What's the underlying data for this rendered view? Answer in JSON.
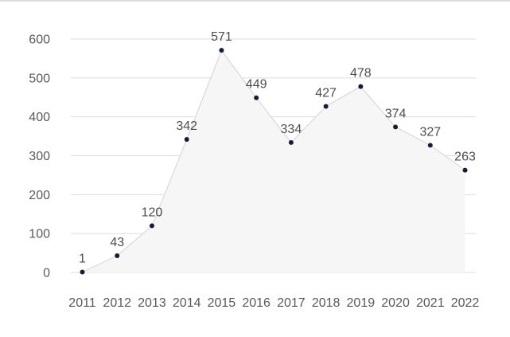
{
  "page": {
    "background_color": "#ffffff",
    "top_border_color": "#dcdcdc"
  },
  "chart_data": {
    "type": "area",
    "title": "",
    "xlabel": "",
    "ylabel": "",
    "categories": [
      "2011",
      "2012",
      "2013",
      "2014",
      "2015",
      "2016",
      "2017",
      "2018",
      "2019",
      "2020",
      "2021",
      "2022"
    ],
    "values": [
      1,
      43,
      120,
      342,
      571,
      449,
      334,
      427,
      478,
      374,
      327,
      263
    ],
    "data_labels": [
      "1",
      "43",
      "120",
      "342",
      "571",
      "449",
      "334",
      "427",
      "478",
      "374",
      "327",
      "263"
    ],
    "yticks": [
      0,
      100,
      200,
      300,
      400,
      500,
      600
    ],
    "ytick_labels": [
      "0",
      "100",
      "200",
      "300",
      "400",
      "500",
      "600"
    ],
    "ylim": [
      0,
      600
    ],
    "grid": true,
    "legend": "none",
    "colors": {
      "point": "#131f35",
      "line": "#d9d9d9",
      "area_fill": "#f6f6f6",
      "grid_line": "#dcdcdc",
      "tick_label": "#595959",
      "data_label": "#4d4d4d"
    }
  }
}
